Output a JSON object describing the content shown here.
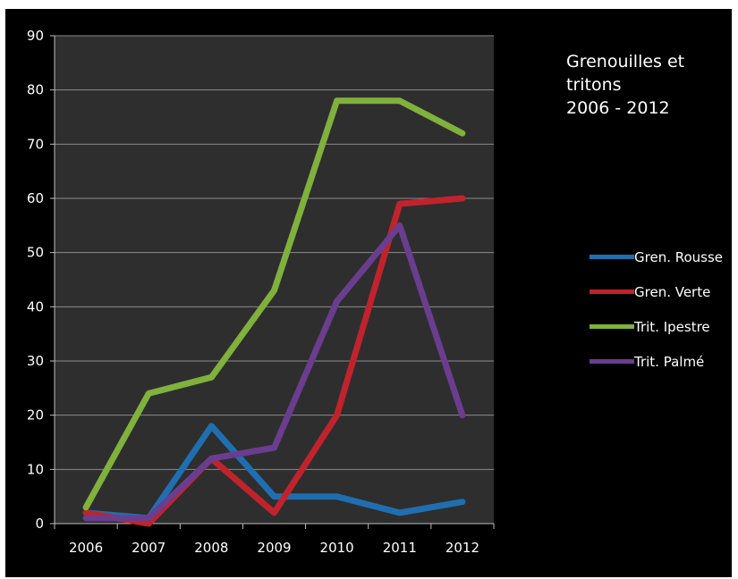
{
  "chart_data": {
    "type": "line",
    "title_lines": [
      "Grenouilles et",
      "tritons",
      "2006 - 2012"
    ],
    "x": [
      "2006",
      "2007",
      "2008",
      "2009",
      "2010",
      "2011",
      "2012"
    ],
    "ylim": [
      0,
      90
    ],
    "yticks": [
      "0",
      "10",
      "20",
      "30",
      "40",
      "50",
      "60",
      "70",
      "80",
      "90"
    ],
    "grid": true,
    "legend_position": "right",
    "background": "#000000",
    "plot_background": "#2e2e2e",
    "series": [
      {
        "name": "Gren. Rousse",
        "color": "#1f6fb0",
        "values": [
          2,
          1,
          18,
          5,
          5,
          2,
          4
        ]
      },
      {
        "name": "Gren. Verte",
        "color": "#c0232c",
        "values": [
          2,
          0,
          12,
          2,
          20,
          59,
          60
        ]
      },
      {
        "name": "Trit. Ipestre",
        "color": "#7fb13c",
        "values": [
          3,
          24,
          27,
          43,
          78,
          78,
          72
        ]
      },
      {
        "name": "Trit. Palmé",
        "color": "#6a3d8e",
        "values": [
          1,
          1,
          12,
          14,
          41,
          55,
          20
        ]
      }
    ]
  }
}
